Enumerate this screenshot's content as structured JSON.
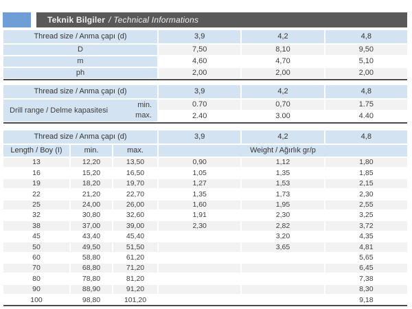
{
  "title_bar": {
    "title_tr": "Teknik Bilgiler",
    "title_en": "/ Technical Informations",
    "bar_color": "#595959",
    "accent_color": "#6f9ed6"
  },
  "colors": {
    "header_blue": "#d4e3f1",
    "row_gray": "#f2f2f2",
    "row_white": "#ffffff",
    "rule_dark": "#4b4b4b",
    "text": "#3d3d3d"
  },
  "thread_size_table": {
    "header": [
      "Thread size / Anma çapı (d)",
      "3,9",
      "4,2",
      "4,8"
    ],
    "rows": [
      {
        "label": "D",
        "values": [
          "7,50",
          "8,10",
          "9,50"
        ]
      },
      {
        "label": "m",
        "values": [
          "4,60",
          "4,70",
          "5,10"
        ]
      },
      {
        "label": "ph",
        "values": [
          "2,00",
          "2,00",
          "2,00"
        ]
      }
    ]
  },
  "drill_range_table": {
    "header": [
      "Thread size / Anma çapı (d)",
      "3,9",
      "4,2",
      "4,8"
    ],
    "group_label": "Drill range / Delme kapasitesi",
    "rows": [
      {
        "label": "min.",
        "values": [
          "0.70",
          "0,70",
          "1.75"
        ]
      },
      {
        "label": "max.",
        "values": [
          "2.40",
          "3.00",
          "4.40"
        ]
      }
    ]
  },
  "length_weight_table": {
    "header1": [
      "Thread size / Anma çapı (d)",
      "3,9",
      "4,2",
      "4,8"
    ],
    "header2": [
      "Length / Boy (I)",
      "min.",
      "max.",
      "Weight / Ağırlık gr/p"
    ],
    "rows": [
      [
        "13",
        "12,20",
        "13,50",
        "0,90",
        "1,12",
        "1,80"
      ],
      [
        "16",
        "15,20",
        "16,50",
        "1,05",
        "1,35",
        "1,85"
      ],
      [
        "19",
        "18,20",
        "19,70",
        "1,27",
        "1,53",
        "2,15"
      ],
      [
        "22",
        "21,20",
        "22,70",
        "1,35",
        "1,73",
        "2,30"
      ],
      [
        "25",
        "24,00",
        "26,00",
        "1,60",
        "1,95",
        "2,55"
      ],
      [
        "32",
        "30,80",
        "32,60",
        "1,91",
        "2,30",
        "3,25"
      ],
      [
        "38",
        "37,00",
        "39,00",
        "2,30",
        "2,82",
        "3,72"
      ],
      [
        "45",
        "43,40",
        "45,40",
        "",
        "3,20",
        "4,35"
      ],
      [
        "50",
        "49,50",
        "51,50",
        "",
        "3,65",
        "4,81"
      ],
      [
        "60",
        "58,80",
        "61,20",
        "",
        "",
        "5,65"
      ],
      [
        "70",
        "68,80",
        "71,20",
        "",
        "",
        "6,45"
      ],
      [
        "80",
        "78,80",
        "81,20",
        "",
        "",
        "7,38"
      ],
      [
        "90",
        "88,90",
        "91,20",
        "",
        "",
        "8,30"
      ],
      [
        "100",
        "98,80",
        "101,20",
        "",
        "",
        "9,18"
      ]
    ]
  }
}
